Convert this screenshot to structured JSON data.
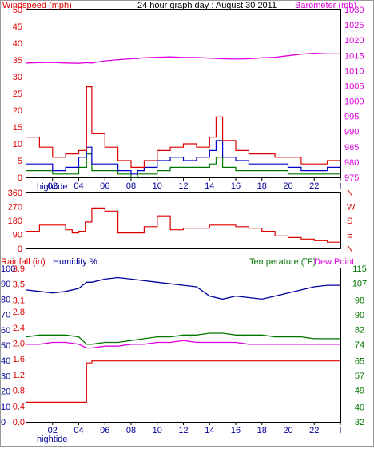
{
  "header": {
    "title": "24 hour graph day : August 30 2011",
    "left_label": "Windspeed (mph)",
    "right_label": "Barometer (mb)"
  },
  "lower_header": {
    "rainfall_label": "Rainfall (in)",
    "humidity_label": "Humidity %",
    "temperature_label": "Temperature (°F)",
    "dewpoint_label": "Dew Point"
  },
  "x_axis": {
    "ticks": [
      "02",
      "04",
      "06",
      "08",
      "10",
      "12",
      "14",
      "16",
      "18",
      "20",
      "22",
      "I"
    ],
    "hightide_label": "hightide"
  },
  "colors": {
    "wind": "#dd0000",
    "gust_avg": "#0000cc",
    "gust_low": "#007700",
    "barometer": "#dd00dd",
    "direction": "#dd0000",
    "humidity": "#000099",
    "temperature": "#007700",
    "dewpoint": "#dd00dd",
    "rainfall": "#dd0000",
    "axis": "#000000"
  },
  "chart_data": [
    {
      "type": "line",
      "title": "24 hour graph day : August 30 2011",
      "ylabel": "Windspeed (mph)",
      "y2label": "Barometer (mb)",
      "ylim": [
        0,
        50
      ],
      "y2lim": [
        975,
        1030
      ],
      "yticks": [
        0,
        5,
        10,
        15,
        20,
        25,
        30,
        35,
        40,
        45,
        50
      ],
      "y2ticks": [
        975,
        980,
        985,
        990,
        995,
        1000,
        1005,
        1010,
        1015,
        1020,
        1025,
        1030
      ],
      "x": [
        0,
        1,
        2,
        3,
        4,
        4.6,
        5,
        6,
        7,
        8,
        8.5,
        9,
        10,
        11,
        12,
        13,
        14,
        14.5,
        15,
        16,
        17,
        18,
        19,
        20,
        21,
        22,
        23
      ],
      "series": [
        {
          "name": "Windspeed (mph)",
          "axis": "left",
          "values": [
            12,
            9,
            6,
            7,
            8,
            27,
            13,
            9,
            5,
            3,
            3,
            5,
            8,
            9,
            10,
            9,
            12,
            18,
            11,
            8,
            7,
            7,
            6,
            6,
            4,
            4,
            5
          ]
        },
        {
          "name": "",
          "axis": "left",
          "values": [
            4,
            4,
            2,
            3,
            6,
            9,
            4,
            4,
            2,
            1,
            2,
            3,
            5,
            6,
            5,
            6,
            8,
            11,
            6,
            5,
            4,
            4,
            4,
            3,
            2,
            2,
            3
          ]
        },
        {
          "name": "",
          "axis": "left",
          "values": [
            2,
            2,
            1,
            1,
            3,
            7,
            2,
            2,
            1,
            0,
            1,
            1,
            2,
            3,
            3,
            3,
            4,
            6,
            3,
            2,
            2,
            2,
            2,
            1,
            1,
            1,
            1
          ]
        },
        {
          "name": "Barometer (mb)",
          "axis": "right",
          "values": [
            1012.5,
            1012.6,
            1012.7,
            1012.5,
            1012.4,
            1012.6,
            1012.5,
            1013.2,
            1013.6,
            1013.9,
            1014.0,
            1014.2,
            1014.4,
            1014.5,
            1014.3,
            1014.3,
            1014.1,
            1014.0,
            1013.9,
            1013.8,
            1013.9,
            1014.2,
            1014.4,
            1014.9,
            1015.4,
            1015.7,
            1015.5
          ]
        }
      ]
    },
    {
      "type": "line",
      "ylim": [
        0,
        360
      ],
      "yticks": [
        0,
        90,
        180,
        270,
        360
      ],
      "y2ticks": [
        "N",
        "W",
        "S",
        "E",
        "N"
      ],
      "x": [
        0,
        1,
        2,
        3,
        3.5,
        4,
        4.5,
        5,
        6,
        7,
        8,
        9,
        10,
        11,
        12,
        13,
        14,
        15,
        16,
        17,
        18,
        19,
        20,
        21,
        22,
        23
      ],
      "series": [
        {
          "name": "",
          "values": [
            110,
            150,
            150,
            120,
            100,
            110,
            170,
            260,
            240,
            100,
            100,
            140,
            210,
            120,
            130,
            130,
            150,
            150,
            140,
            130,
            110,
            80,
            70,
            60,
            50,
            40
          ]
        }
      ]
    },
    {
      "type": "line",
      "ylabel": "Rainfall (in)",
      "y2label": "Humidity %",
      "y3label": "Temperature (°F)",
      "y4label": "Dew Point",
      "ylim": [
        0,
        3.9
      ],
      "yticks": [
        0.0,
        0.4,
        0.8,
        1.2,
        1.6,
        2.0,
        2.4,
        2.8,
        3.1,
        3.5,
        3.9
      ],
      "y2lim": [
        0,
        100
      ],
      "y2ticks": [
        0,
        10,
        20,
        30,
        40,
        50,
        60,
        70,
        80,
        90,
        100
      ],
      "y3lim": [
        32,
        115
      ],
      "y3ticks": [
        32,
        40,
        49,
        57,
        65,
        74,
        82,
        90,
        98,
        107,
        115
      ],
      "x": [
        0,
        1,
        2,
        3,
        4,
        4.6,
        5,
        6,
        7,
        8,
        9,
        10,
        11,
        12,
        13,
        14,
        15,
        16,
        17,
        18,
        19,
        20,
        21,
        22,
        23
      ],
      "series": [
        {
          "name": "Rainfall (in)",
          "axis": "rainfall",
          "values": [
            0.5,
            0.5,
            0.5,
            0.5,
            0.5,
            1.5,
            1.55,
            1.55,
            1.55,
            1.55,
            1.55,
            1.55,
            1.55,
            1.55,
            1.55,
            1.55,
            1.55,
            1.55,
            1.55,
            1.55,
            1.55,
            1.55,
            1.55,
            1.55,
            1.55
          ]
        },
        {
          "name": "Humidity %",
          "axis": "humidity",
          "values": [
            86,
            85,
            84,
            85,
            87,
            91,
            91,
            93,
            94,
            93,
            92,
            91,
            90,
            89,
            88,
            82,
            80,
            82,
            81,
            80,
            82,
            84,
            86,
            88,
            89
          ]
        },
        {
          "name": "Temperature (°F)",
          "axis": "temperature",
          "values": [
            78,
            79,
            79,
            79,
            78,
            74,
            74,
            75,
            75,
            76,
            77,
            78,
            78,
            79,
            79,
            80,
            80,
            79,
            79,
            79,
            78,
            78,
            78,
            77,
            77
          ]
        },
        {
          "name": "Dew Point",
          "axis": "temperature",
          "values": [
            74,
            74,
            75,
            75,
            74,
            72,
            72,
            73,
            73,
            74,
            74,
            75,
            75,
            76,
            75,
            75,
            75,
            75,
            74,
            74,
            74,
            74,
            74,
            74,
            74
          ]
        }
      ]
    }
  ]
}
